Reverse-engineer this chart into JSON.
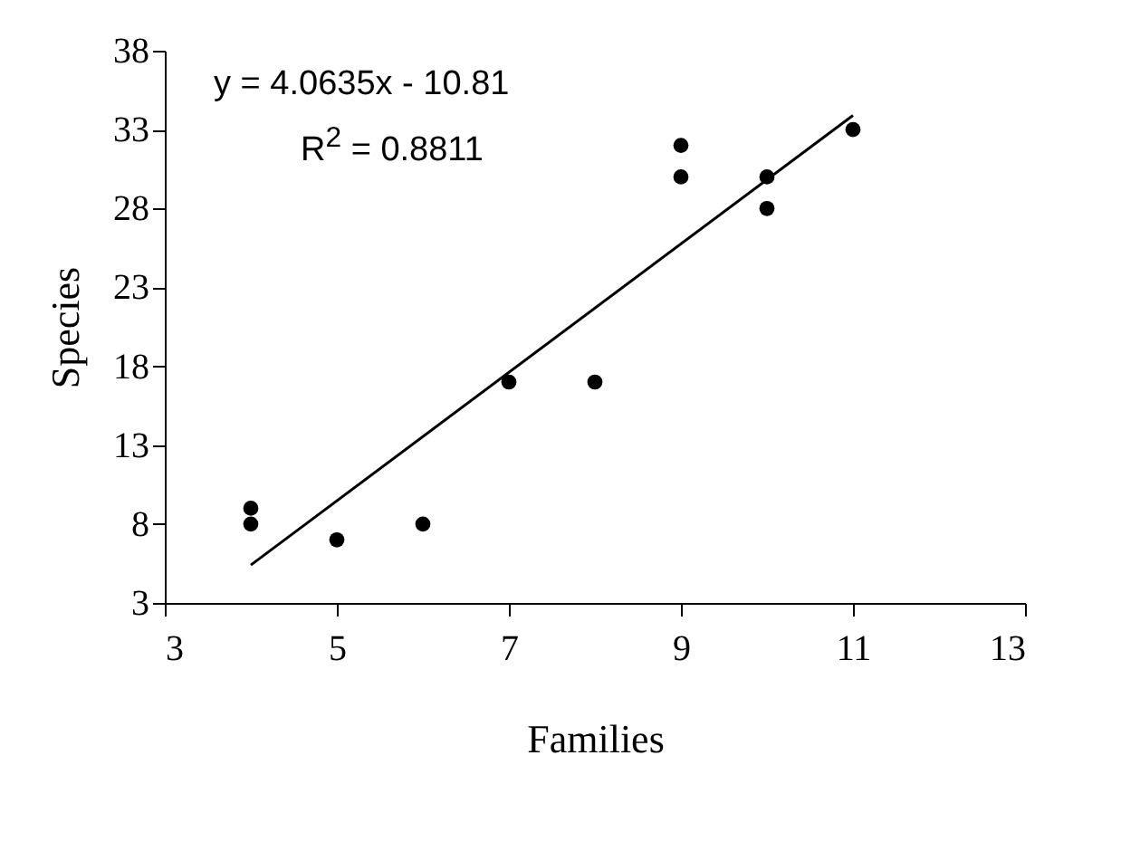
{
  "chart_data": {
    "type": "scatter",
    "xlabel": "Families",
    "ylabel": "Species",
    "annotations": [
      "y = 4.0635x - 10.81",
      "R$^{2}$ = 0.8811"
    ],
    "xlim": [
      3,
      13
    ],
    "xticks": [
      3,
      5,
      7,
      9,
      11,
      13
    ],
    "ylim": [
      3,
      38
    ],
    "yticks": [
      3,
      8,
      13,
      18,
      23,
      28,
      33,
      38
    ],
    "grid": false,
    "series": [
      {
        "type": "scatter",
        "color": "#000000",
        "marker": "circle",
        "x": [
          4,
          4,
          5,
          6,
          7,
          8,
          9,
          9,
          10,
          10,
          11
        ],
        "values": [
          9,
          8,
          7,
          8,
          17,
          17,
          32,
          30,
          30,
          28,
          33
        ]
      },
      {
        "type": "line",
        "color": "#000000",
        "x": [
          4,
          11
        ],
        "values": [
          5.4,
          33.9
        ],
        "line_style": "solid",
        "marker": "none"
      }
    ]
  }
}
